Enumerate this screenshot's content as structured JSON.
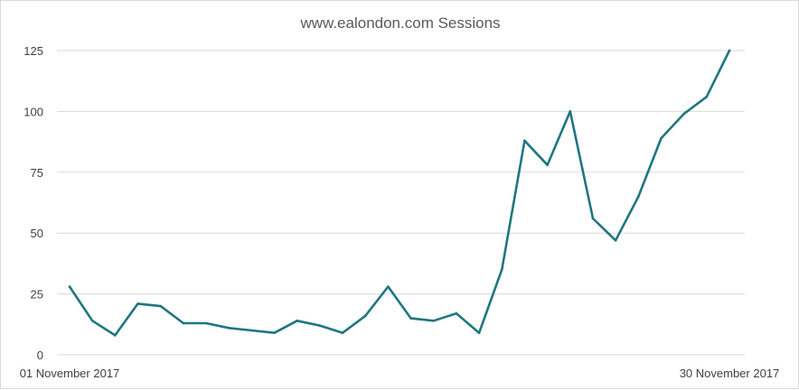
{
  "chart_data": {
    "type": "line",
    "title": "www.ealondon.com  Sessions",
    "xlabel": "",
    "ylabel": "",
    "x_start_label": "01 November 2017",
    "x_end_label": "30 November 2017",
    "x": [
      "2017-11-01",
      "2017-11-02",
      "2017-11-03",
      "2017-11-04",
      "2017-11-05",
      "2017-11-06",
      "2017-11-07",
      "2017-11-08",
      "2017-11-09",
      "2017-11-10",
      "2017-11-11",
      "2017-11-12",
      "2017-11-13",
      "2017-11-14",
      "2017-11-15",
      "2017-11-16",
      "2017-11-17",
      "2017-11-18",
      "2017-11-19",
      "2017-11-20",
      "2017-11-21",
      "2017-11-22",
      "2017-11-23",
      "2017-11-24",
      "2017-11-25",
      "2017-11-26",
      "2017-11-27",
      "2017-11-28",
      "2017-11-29",
      "2017-11-30"
    ],
    "series": [
      {
        "values": [
          28,
          14,
          8,
          21,
          20,
          13,
          13,
          11,
          10,
          9,
          14,
          12,
          9,
          16,
          28,
          15,
          14,
          17,
          9,
          35,
          88,
          78,
          100,
          56,
          47,
          65,
          89,
          99,
          106,
          125
        ],
        "color": "#1f7680"
      }
    ],
    "yticks": [
      0,
      25,
      50,
      75,
      100,
      125
    ],
    "ylim": [
      0,
      125
    ],
    "grid": true,
    "legend": "none"
  }
}
